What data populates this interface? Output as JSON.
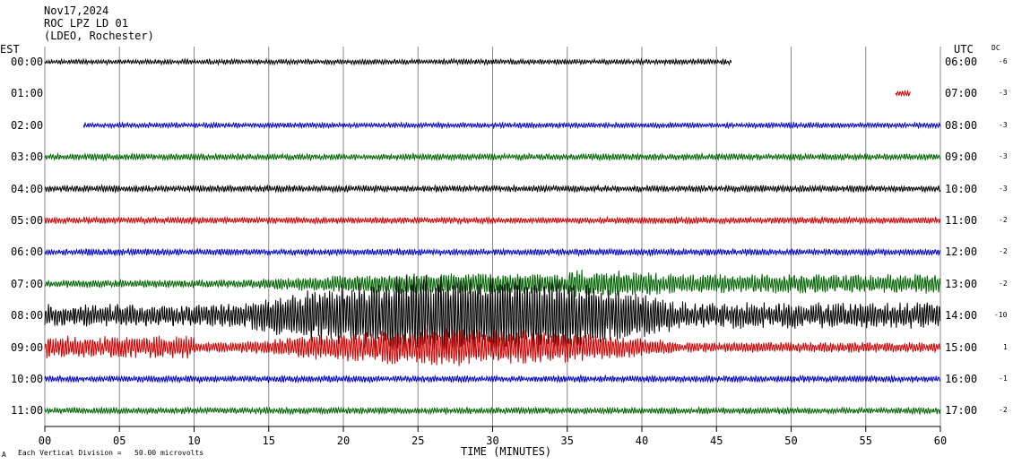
{
  "header": {
    "date": "Nov17,2024",
    "station": "ROC LPZ LD 01",
    "network": "(LDEO, Rochester)"
  },
  "labels": {
    "left_tz": "EST",
    "right_tz": "UTC",
    "dc": "DC"
  },
  "footer": {
    "division_note": "Each Vertical Division =   50.00 microvolts",
    "logo_mark": "A"
  },
  "chart_data": {
    "type": "line",
    "title": "",
    "xlabel": "TIME (MINUTES)",
    "xlim": [
      0,
      60
    ],
    "xticks": [
      "00",
      "05",
      "10",
      "15",
      "20",
      "25",
      "30",
      "35",
      "40",
      "45",
      "50",
      "55",
      "60"
    ],
    "grid": true,
    "rows": [
      {
        "est": "00:00",
        "utc": "06:00",
        "dc": "-6",
        "color": "#000000",
        "start": 0,
        "end": 46,
        "amp": 2
      },
      {
        "est": "01:00",
        "utc": "07:00",
        "dc": "-3",
        "color": "#d00000",
        "start": 57,
        "end": 58,
        "amp": 2
      },
      {
        "est": "02:00",
        "utc": "08:00",
        "dc": "-3",
        "color": "#0000c8",
        "start": 2.6,
        "end": 60,
        "amp": 2
      },
      {
        "est": "03:00",
        "utc": "09:00",
        "dc": "-3",
        "color": "#006400",
        "start": 0,
        "end": 60,
        "amp": 2.5
      },
      {
        "est": "04:00",
        "utc": "10:00",
        "dc": "-3",
        "color": "#000000",
        "start": 0,
        "end": 60,
        "amp": 2.5
      },
      {
        "est": "05:00",
        "utc": "11:00",
        "dc": "-2",
        "color": "#d00000",
        "start": 0,
        "end": 60,
        "amp": 2.5
      },
      {
        "est": "06:00",
        "utc": "12:00",
        "dc": "-2",
        "color": "#0000c8",
        "start": 0,
        "end": 60,
        "amp": 2.5
      },
      {
        "est": "07:00",
        "utc": "13:00",
        "dc": "-2",
        "color": "#006400",
        "start": 0,
        "end": 60,
        "amp": 3
      },
      {
        "est": "08:00",
        "utc": "14:00",
        "dc": "-10",
        "color": "#000000",
        "start": 0,
        "end": 60,
        "amp": 10
      },
      {
        "est": "09:00",
        "utc": "15:00",
        "dc": "1",
        "color": "#d00000",
        "start": 0,
        "end": 60,
        "amp": 4
      },
      {
        "est": "10:00",
        "utc": "16:00",
        "dc": "-1",
        "color": "#0000c8",
        "start": 0,
        "end": 60,
        "amp": 2.5
      },
      {
        "est": "11:00",
        "utc": "17:00",
        "dc": "-2",
        "color": "#006400",
        "start": 0,
        "end": 60,
        "amp": 2.5
      }
    ],
    "event": {
      "start_min": 13,
      "peak_min": 26,
      "end_min": 46
    }
  }
}
